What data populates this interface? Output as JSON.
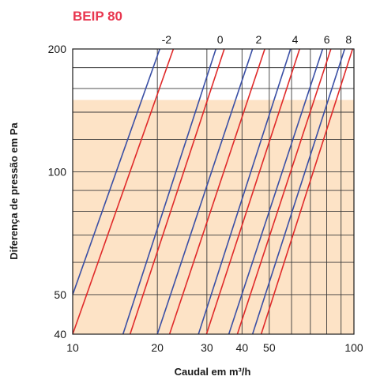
{
  "chart_data": {
    "type": "line",
    "title": "BEIP 80",
    "xlabel": "Caudal em m³/h",
    "ylabel": "Diferença de pressão em Pa",
    "xscale": "log",
    "yscale": "log",
    "xlim": [
      10,
      100
    ],
    "ylim": [
      40,
      200
    ],
    "x_ticks": [
      10,
      20,
      30,
      40,
      50,
      100
    ],
    "x_tick_labels": [
      "10",
      "20",
      "30",
      "40",
      "50",
      "100"
    ],
    "y_ticks": [
      40,
      50,
      100,
      200
    ],
    "y_tick_labels": [
      "40",
      "50",
      "100",
      "200"
    ],
    "x_grid": [
      10,
      20,
      30,
      40,
      50,
      60,
      70,
      80,
      90,
      100
    ],
    "y_grid": [
      40,
      50,
      60,
      70,
      80,
      90,
      100,
      120,
      140,
      160,
      180,
      200
    ],
    "grid": true,
    "shaded_band": {
      "y_from": 40,
      "y_to": 150,
      "color": "#fde3c6"
    },
    "line_labels": [
      "-2",
      "0",
      "2",
      "4",
      "6",
      "8"
    ],
    "series": [
      {
        "line_label": "-2",
        "color": "#3a4fa5",
        "points": [
          [
            10,
            50
          ],
          [
            20.4,
            200
          ]
        ]
      },
      {
        "line_label": "-2",
        "color": "#e02a2a",
        "points": [
          [
            10,
            40
          ],
          [
            22.8,
            200
          ]
        ]
      },
      {
        "line_label": "0",
        "color": "#3a4fa5",
        "points": [
          [
            15.1,
            40
          ],
          [
            32.3,
            200
          ]
        ]
      },
      {
        "line_label": "0",
        "color": "#e02a2a",
        "points": [
          [
            16.0,
            40
          ],
          [
            34.6,
            200
          ]
        ]
      },
      {
        "line_label": "2",
        "color": "#3a4fa5",
        "points": [
          [
            20.0,
            40
          ],
          [
            43.6,
            200
          ]
        ]
      },
      {
        "line_label": "2",
        "color": "#e02a2a",
        "points": [
          [
            22.1,
            40
          ],
          [
            48.2,
            200
          ]
        ]
      },
      {
        "line_label": "4",
        "color": "#3a4fa5",
        "points": [
          [
            28.0,
            40
          ],
          [
            59.5,
            200
          ]
        ]
      },
      {
        "line_label": "4",
        "color": "#e02a2a",
        "points": [
          [
            29.9,
            40
          ],
          [
            64.1,
            200
          ]
        ]
      },
      {
        "line_label": "6",
        "color": "#3a4fa5",
        "points": [
          [
            35.9,
            40
          ],
          [
            77.4,
            200
          ]
        ]
      },
      {
        "line_label": "6",
        "color": "#e02a2a",
        "points": [
          [
            38.5,
            40
          ],
          [
            82.8,
            200
          ]
        ]
      },
      {
        "line_label": "8",
        "color": "#3a4fa5",
        "points": [
          [
            43.6,
            40
          ],
          [
            92.7,
            200
          ]
        ]
      },
      {
        "line_label": "8",
        "color": "#e02a2a",
        "points": [
          [
            46.8,
            40
          ],
          [
            98.9,
            200
          ]
        ]
      }
    ]
  }
}
